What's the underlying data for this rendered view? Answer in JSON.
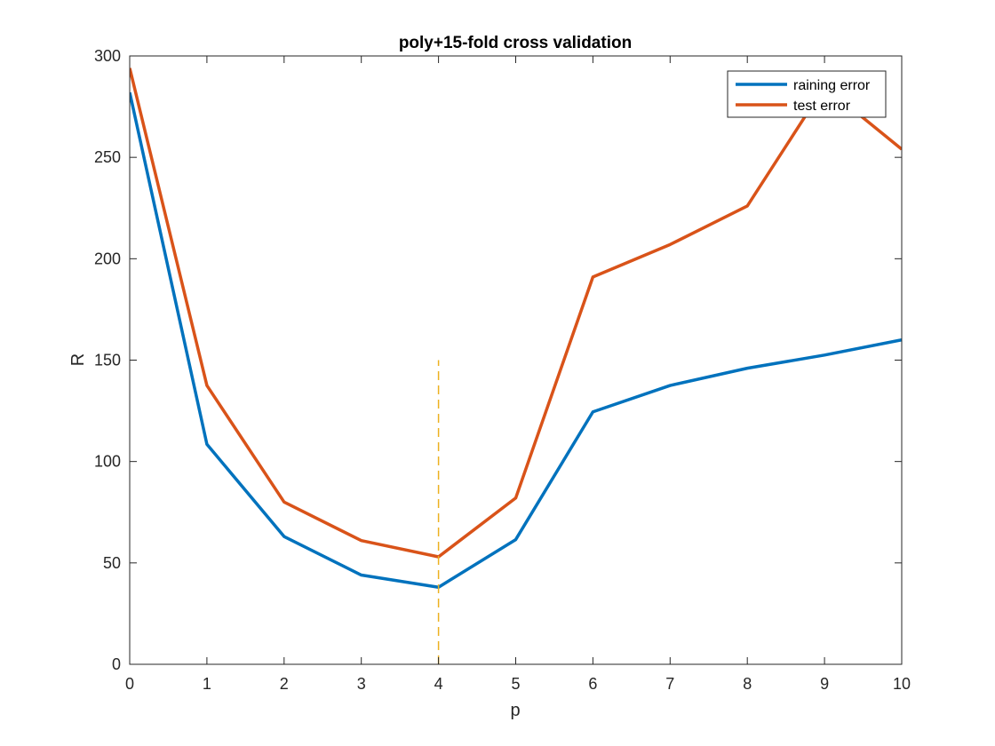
{
  "chart_data": {
    "type": "line",
    "title": "poly+15-fold cross validation",
    "xlabel": "p",
    "ylabel": "R",
    "xlim": [
      0,
      10
    ],
    "ylim": [
      0,
      300
    ],
    "xticks": [
      0,
      1,
      2,
      3,
      4,
      5,
      6,
      7,
      8,
      9,
      10
    ],
    "yticks": [
      0,
      50,
      100,
      150,
      200,
      250,
      300
    ],
    "grid": false,
    "legend_position": "top-right",
    "x": [
      0,
      1,
      2,
      3,
      4,
      5,
      6,
      7,
      8,
      9,
      10
    ],
    "series": [
      {
        "name": "raining error",
        "color": "#0072BD",
        "values": [
          282,
          108.5,
          63,
          44,
          38,
          61.5,
          124.5,
          137.5,
          146,
          152.5,
          160
        ]
      },
      {
        "name": "test error",
        "color": "#D95319",
        "values": [
          294,
          137.5,
          80,
          61,
          53,
          82,
          191,
          207,
          226,
          285,
          254
        ]
      }
    ],
    "annotations": [
      {
        "type": "vertical-dashed-line",
        "x": 4,
        "y_from": 0,
        "y_to": 150,
        "color": "#EDB120"
      }
    ]
  }
}
